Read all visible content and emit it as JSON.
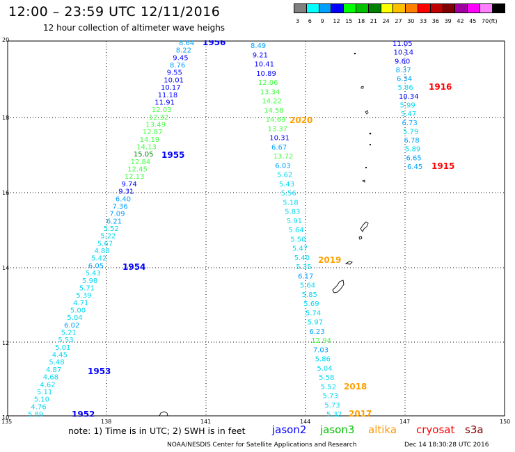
{
  "header": {
    "title": "12:00 – 23:59 UTC 12/11/2016",
    "subtitle": "12 hour collection of altimeter wave heighs"
  },
  "colorbar": {
    "unit": "(ft)",
    "bins": [
      {
        "label": "3",
        "color": "#808080"
      },
      {
        "label": "6",
        "color": "#00ffff"
      },
      {
        "label": "9",
        "color": "#00a0ff"
      },
      {
        "label": "12",
        "color": "#0000ff"
      },
      {
        "label": "15",
        "color": "#00ff00"
      },
      {
        "label": "18",
        "color": "#00c000"
      },
      {
        "label": "21",
        "color": "#008000"
      },
      {
        "label": "24",
        "color": "#ffff00"
      },
      {
        "label": "27",
        "color": "#ffc000"
      },
      {
        "label": "30",
        "color": "#ff8000"
      },
      {
        "label": "33",
        "color": "#ff0000"
      },
      {
        "label": "36",
        "color": "#c00000"
      },
      {
        "label": "39",
        "color": "#800000"
      },
      {
        "label": "42",
        "color": "#a000a0"
      },
      {
        "label": "45",
        "color": "#ff00ff"
      },
      {
        "label": "70",
        "color": "#ff80ff"
      },
      {
        "label": "",
        "color": "#000000"
      }
    ]
  },
  "axes": {
    "lat_ticks": [
      "20",
      "18",
      "16",
      "14",
      "12",
      "10"
    ],
    "lon_ticks": [
      "135",
      "138",
      "141",
      "144",
      "147",
      "150"
    ]
  },
  "tracks": {
    "pass_labels": [
      {
        "text": "1956",
        "color": "#0000ff"
      },
      {
        "text": "1955",
        "color": "#0000ff"
      },
      {
        "text": "1954",
        "color": "#0000ff"
      },
      {
        "text": "1953",
        "color": "#0000ff"
      },
      {
        "text": "1952",
        "color": "#0000ff"
      },
      {
        "text": "2020",
        "color": "#ffa000"
      },
      {
        "text": "2019",
        "color": "#ffa000"
      },
      {
        "text": "2018",
        "color": "#ffa000"
      },
      {
        "text": "2017",
        "color": "#ffa000"
      },
      {
        "text": "1916",
        "color": "#ff0000"
      },
      {
        "text": "1915",
        "color": "#ff0000"
      }
    ],
    "track_a": [
      {
        "v": "8.64",
        "c": "#00a0ff"
      },
      {
        "v": "8.22",
        "c": "#00a0ff"
      },
      {
        "v": "9.45",
        "c": "#0000ff"
      },
      {
        "v": "8.76",
        "c": "#00a0ff"
      },
      {
        "v": "9.55",
        "c": "#0000ff"
      },
      {
        "v": "10.01",
        "c": "#0000ff"
      },
      {
        "v": "10.17",
        "c": "#0000ff"
      },
      {
        "v": "11.18",
        "c": "#0000ff"
      },
      {
        "v": "11.91",
        "c": "#0000ff"
      },
      {
        "v": "12.03",
        "c": "#40ff40"
      },
      {
        "v": "12.32",
        "c": "#40ff40"
      },
      {
        "v": "13.49",
        "c": "#40ff40"
      },
      {
        "v": "12.87",
        "c": "#40ff40"
      },
      {
        "v": "14.19",
        "c": "#40ff40"
      },
      {
        "v": "14.13",
        "c": "#40ff40"
      },
      {
        "v": "15.05",
        "c": "#008000"
      },
      {
        "v": "12.84",
        "c": "#40ff40"
      },
      {
        "v": "12.45",
        "c": "#40ff40"
      },
      {
        "v": "12.13",
        "c": "#40ff40"
      },
      {
        "v": "9.74",
        "c": "#0000ff"
      },
      {
        "v": "9.31",
        "c": "#0000ff"
      },
      {
        "v": "6.40",
        "c": "#00a0ff"
      },
      {
        "v": "7.36",
        "c": "#00a0ff"
      },
      {
        "v": "7.09",
        "c": "#00a0ff"
      },
      {
        "v": "6.21",
        "c": "#00a0ff"
      },
      {
        "v": "5.52",
        "c": "#00d8f0"
      },
      {
        "v": "5.22",
        "c": "#00d8f0"
      },
      {
        "v": "5.67",
        "c": "#00d8f0"
      },
      {
        "v": "4.88",
        "c": "#00d8f0"
      },
      {
        "v": "5.42",
        "c": "#00d8f0"
      },
      {
        "v": "6.05",
        "c": "#00a0ff"
      },
      {
        "v": "5.43",
        "c": "#00d8f0"
      },
      {
        "v": "5.98",
        "c": "#00d8f0"
      },
      {
        "v": "5.71",
        "c": "#00d8f0"
      },
      {
        "v": "5.39",
        "c": "#00d8f0"
      },
      {
        "v": "4.71",
        "c": "#00d8f0"
      },
      {
        "v": "5.00",
        "c": "#00d8f0"
      },
      {
        "v": "5.04",
        "c": "#00d8f0"
      },
      {
        "v": "6.02",
        "c": "#00a0ff"
      },
      {
        "v": "5.21",
        "c": "#00d8f0"
      },
      {
        "v": "5.53",
        "c": "#00d8f0"
      },
      {
        "v": "5.01",
        "c": "#00d8f0"
      },
      {
        "v": "4.45",
        "c": "#00d8f0"
      },
      {
        "v": "5.48",
        "c": "#00d8f0"
      },
      {
        "v": "4.87",
        "c": "#00d8f0"
      },
      {
        "v": "4.68",
        "c": "#00d8f0"
      },
      {
        "v": "4.62",
        "c": "#00d8f0"
      },
      {
        "v": "5.11",
        "c": "#00d8f0"
      },
      {
        "v": "5.10",
        "c": "#00d8f0"
      },
      {
        "v": "4.76",
        "c": "#00d8f0"
      },
      {
        "v": "5.89",
        "c": "#00d8f0"
      }
    ],
    "track_b": [
      {
        "v": "8.49",
        "c": "#00a0ff"
      },
      {
        "v": "9.21",
        "c": "#0000ff"
      },
      {
        "v": "10.41",
        "c": "#0000ff"
      },
      {
        "v": "10.89",
        "c": "#0000ff"
      },
      {
        "v": "12.06",
        "c": "#40ff40"
      },
      {
        "v": "13.34",
        "c": "#40ff40"
      },
      {
        "v": "14.22",
        "c": "#40ff40"
      },
      {
        "v": "14.58",
        "c": "#40ff40"
      },
      {
        "v": "14.69",
        "c": "#40ff40"
      },
      {
        "v": "13.37",
        "c": "#40ff40"
      },
      {
        "v": "10.31",
        "c": "#0000ff"
      },
      {
        "v": "6.67",
        "c": "#00a0ff"
      },
      {
        "v": "13.72",
        "c": "#40ff40"
      },
      {
        "v": "6.03",
        "c": "#00a0ff"
      },
      {
        "v": "5.62",
        "c": "#00d8f0"
      },
      {
        "v": "5.43",
        "c": "#00d8f0"
      },
      {
        "v": "5.56",
        "c": "#00d8f0"
      },
      {
        "v": "5.18",
        "c": "#00d8f0"
      },
      {
        "v": "5.83",
        "c": "#00d8f0"
      },
      {
        "v": "5.91",
        "c": "#00d8f0"
      },
      {
        "v": "5.64",
        "c": "#00d8f0"
      },
      {
        "v": "5.50",
        "c": "#00d8f0"
      },
      {
        "v": "5.47",
        "c": "#00d8f0"
      },
      {
        "v": "5.40",
        "c": "#00d8f0"
      },
      {
        "v": "5.35",
        "c": "#00d8f0"
      },
      {
        "v": "6.17",
        "c": "#00a0ff"
      },
      {
        "v": "5.64",
        "c": "#00d8f0"
      },
      {
        "v": "5.85",
        "c": "#00d8f0"
      },
      {
        "v": "5.69",
        "c": "#00d8f0"
      },
      {
        "v": "5.74",
        "c": "#00d8f0"
      },
      {
        "v": "5.97",
        "c": "#00d8f0"
      },
      {
        "v": "6.23",
        "c": "#00a0ff"
      },
      {
        "v": "12.94",
        "c": "#40ff40"
      },
      {
        "v": "7.03",
        "c": "#00a0ff"
      },
      {
        "v": "5.86",
        "c": "#00d8f0"
      },
      {
        "v": "5.04",
        "c": "#00d8f0"
      },
      {
        "v": "5.58",
        "c": "#00d8f0"
      },
      {
        "v": "5.52",
        "c": "#00d8f0"
      },
      {
        "v": "5.73",
        "c": "#00d8f0"
      },
      {
        "v": "5.73",
        "c": "#00d8f0"
      },
      {
        "v": "5.32",
        "c": "#00d8f0"
      }
    ],
    "track_c": [
      {
        "v": "11.05",
        "c": "#0000ff"
      },
      {
        "v": "10.14",
        "c": "#0000ff"
      },
      {
        "v": "9.60",
        "c": "#0000ff"
      },
      {
        "v": "8.37",
        "c": "#00a0ff"
      },
      {
        "v": "6.34",
        "c": "#00a0ff"
      },
      {
        "v": "5.86",
        "c": "#00d8f0"
      },
      {
        "v": "10.34",
        "c": "#0000ff"
      },
      {
        "v": "5.99",
        "c": "#00d8f0"
      },
      {
        "v": "5.47",
        "c": "#00d8f0"
      },
      {
        "v": "6.73",
        "c": "#00a0ff"
      },
      {
        "v": "5.79",
        "c": "#00d8f0"
      },
      {
        "v": "6.78",
        "c": "#00a0ff"
      },
      {
        "v": "5.89",
        "c": "#00d8f0"
      },
      {
        "v": "6.65",
        "c": "#00a0ff"
      },
      {
        "v": "6.45",
        "c": "#00a0ff"
      }
    ]
  },
  "footer": {
    "note": "note: 1) Time is in UTC; 2) SWH is in feet",
    "satellites": [
      {
        "name": "jason2",
        "color": "#0000ff"
      },
      {
        "name": "jason3",
        "color": "#00c000"
      },
      {
        "name": "altika",
        "color": "#ff9900"
      },
      {
        "name": "cryosat",
        "color": "#ff0000"
      },
      {
        "name": "s3a",
        "color": "#800000"
      }
    ],
    "credit": "NOAA/NESDIS Center for Satellite Applications and Research",
    "stamp": "Dec 14 18:30:28 UTC 2016"
  }
}
